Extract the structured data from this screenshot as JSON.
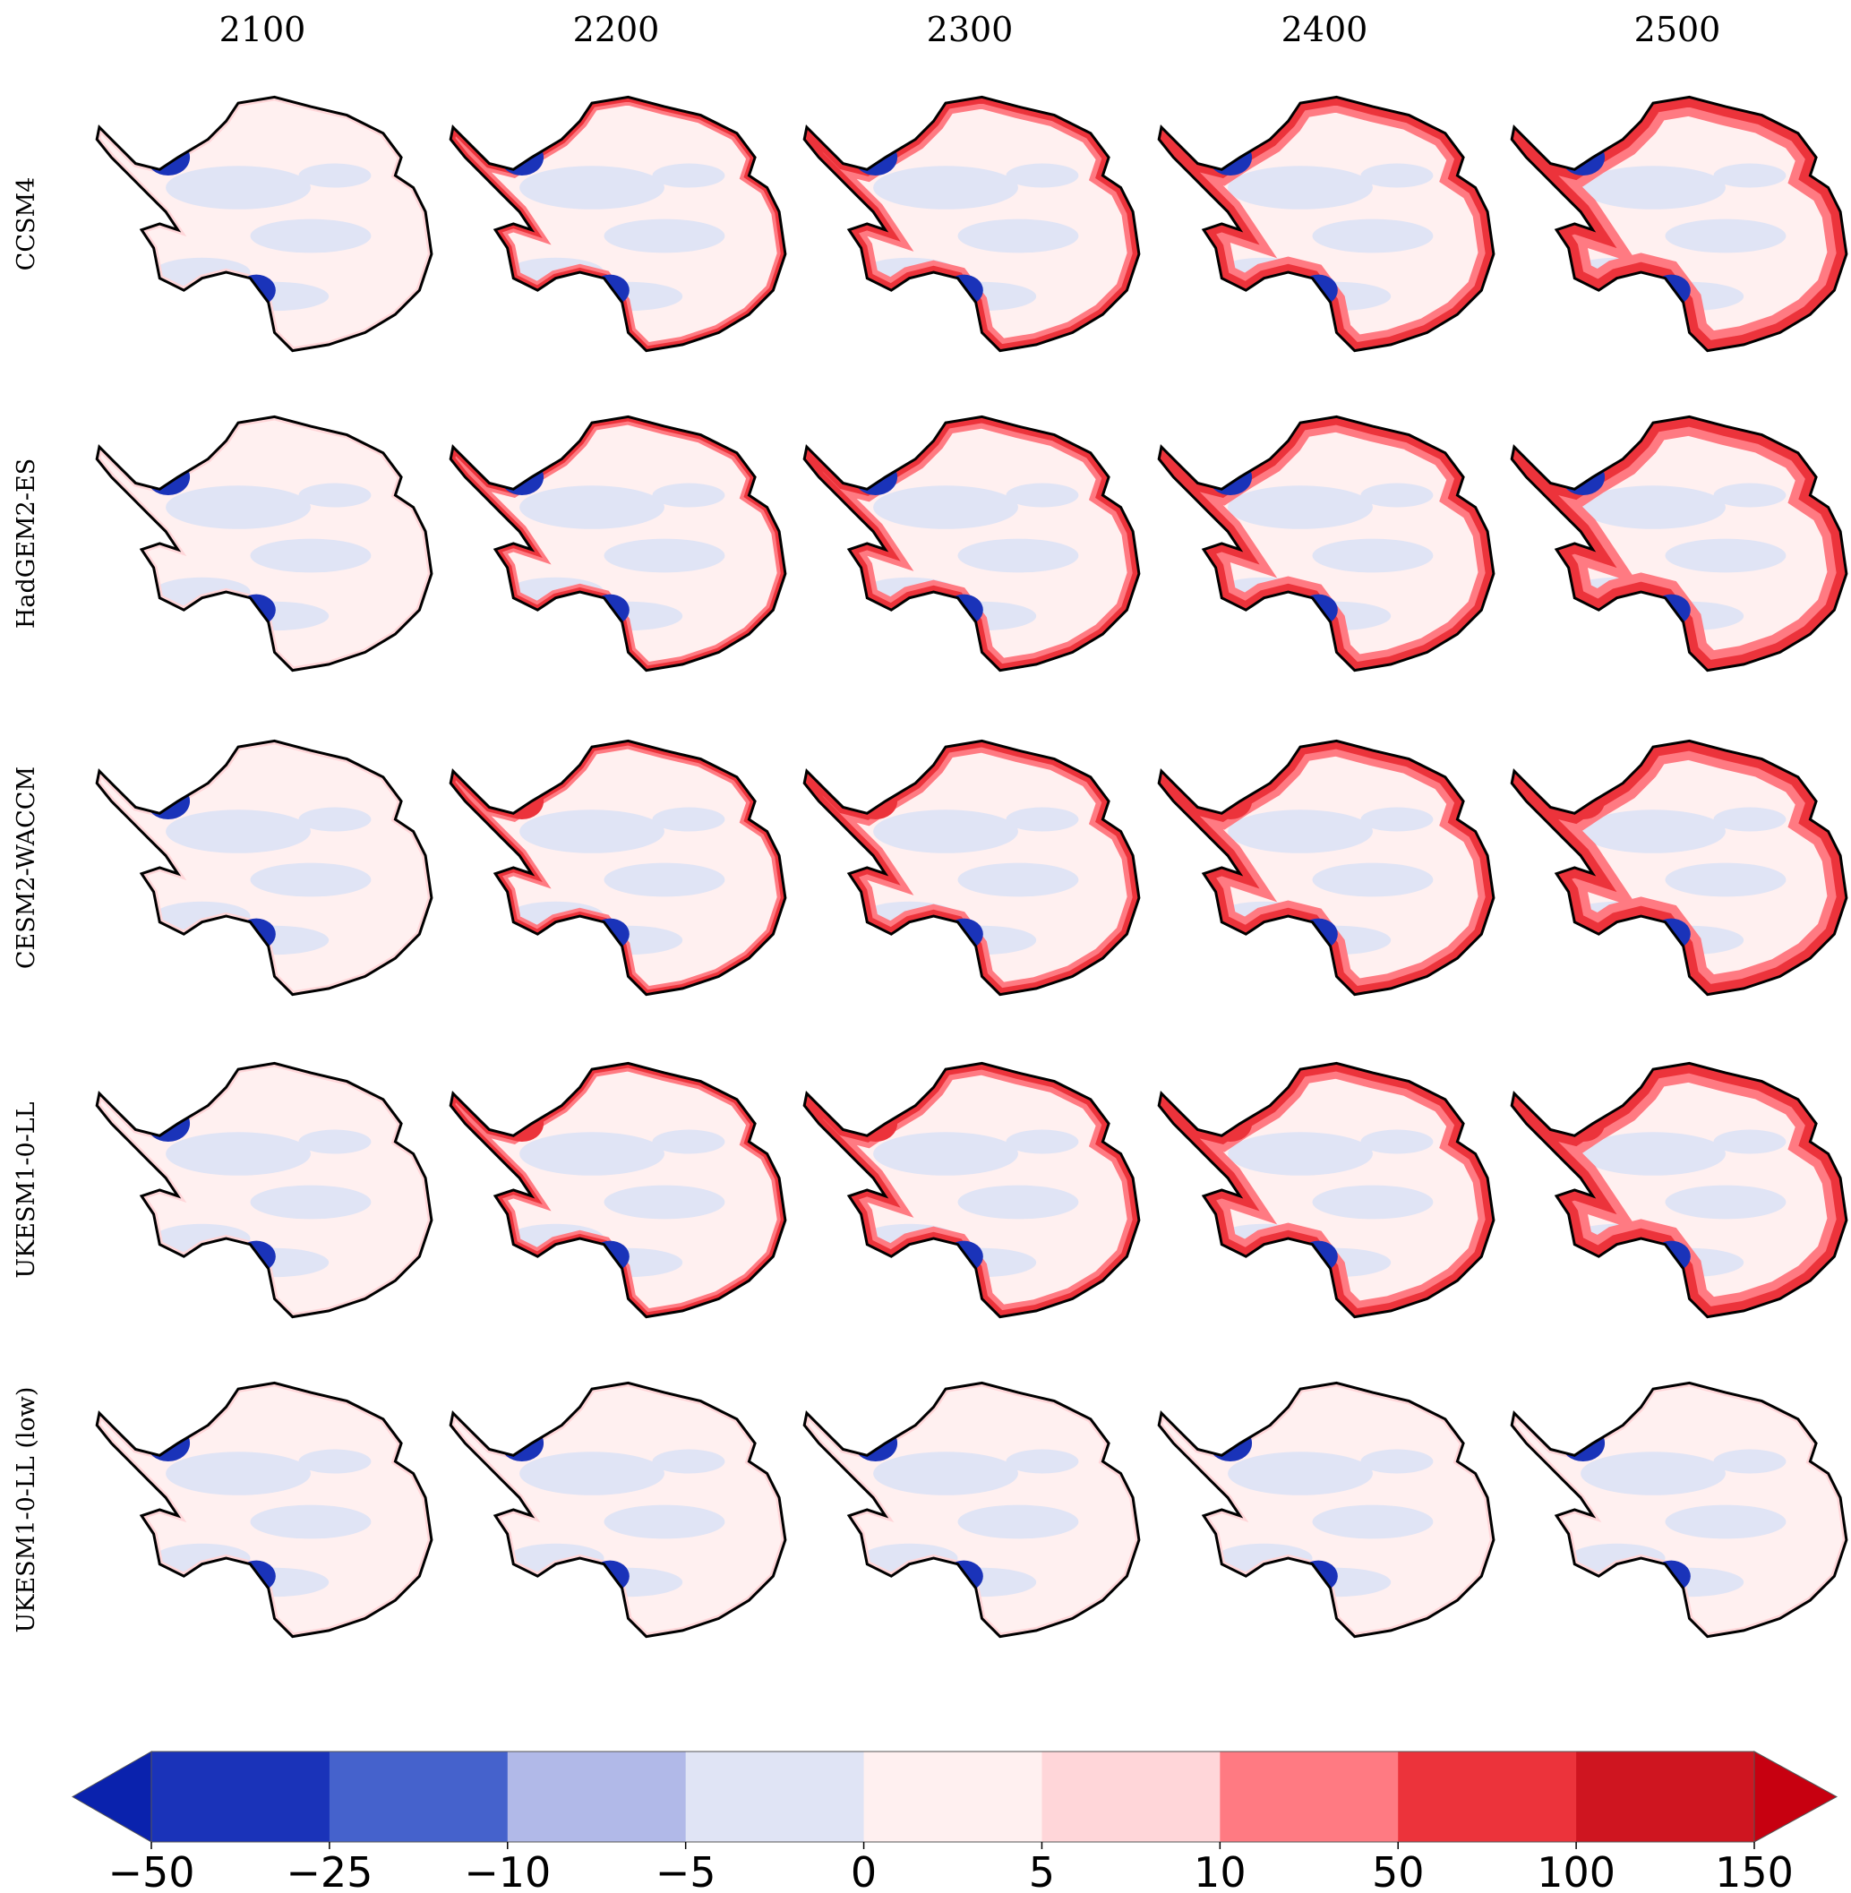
{
  "columns": [
    "2100",
    "2200",
    "2300",
    "2400",
    "2500"
  ],
  "rows": [
    "CCSM4",
    "HadGEM2-ES",
    "CESM2-WACCM",
    "UKESM1-0-LL",
    "UKESM1-0-LL (low)"
  ],
  "colorbar": {
    "ticks": [
      {
        "value": -50,
        "label": "−50"
      },
      {
        "value": -25,
        "label": "−25"
      },
      {
        "value": -10,
        "label": "−10"
      },
      {
        "value": -5,
        "label": "−5"
      },
      0,
      5,
      10,
      50,
      100,
      150
    ],
    "colors": [
      "#0a22ad",
      "#1a33b9",
      "#4562cc",
      "#b1b9e8",
      "#e0e4f5",
      "#fff0f0",
      "#ffd6d9",
      "#ff7a82",
      "#ec333b",
      "#cf1520",
      "#c70010"
    ],
    "extend": "both"
  }
}
